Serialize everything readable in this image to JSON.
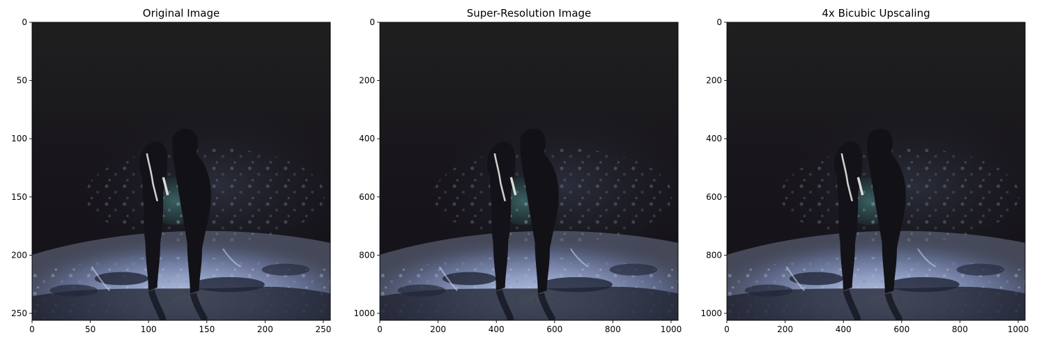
{
  "figure": {
    "panels": [
      {
        "title": "Original Image",
        "xticks": [
          0,
          50,
          100,
          150,
          200,
          250
        ],
        "yticks": [
          0,
          50,
          100,
          150,
          200,
          250
        ],
        "extent": 256
      },
      {
        "title": "Super-Resolution Image",
        "xticks": [
          0,
          200,
          400,
          600,
          800,
          1000
        ],
        "yticks": [
          0,
          200,
          400,
          600,
          800,
          1000
        ],
        "extent": 1024
      },
      {
        "title": "4x Bicubic Upscaling",
        "xticks": [
          0,
          200,
          400,
          600,
          800,
          1000
        ],
        "yticks": [
          0,
          200,
          400,
          600,
          800,
          1000
        ],
        "extent": 1024
      }
    ]
  },
  "chart_data": [
    {
      "type": "image",
      "title": "Original Image",
      "xlim": [
        0,
        256
      ],
      "ylim": [
        256,
        0
      ],
      "xticks": [
        0,
        50,
        100,
        150,
        200,
        250
      ],
      "yticks": [
        0,
        50,
        100,
        150,
        200,
        250
      ],
      "grid": false,
      "content": "night scene photograph: two silhouetted figures on snowy ground"
    },
    {
      "type": "image",
      "title": "Super-Resolution Image",
      "xlim": [
        0,
        1024
      ],
      "ylim": [
        1024,
        0
      ],
      "xticks": [
        0,
        200,
        400,
        600,
        800,
        1000
      ],
      "yticks": [
        0,
        200,
        400,
        600,
        800,
        1000
      ],
      "grid": false,
      "content": "night scene photograph: two silhouetted figures on snowy ground"
    },
    {
      "type": "image",
      "title": "4x Bicubic Upscaling",
      "xlim": [
        0,
        1024
      ],
      "ylim": [
        1024,
        0
      ],
      "xticks": [
        0,
        200,
        400,
        600,
        800,
        1000
      ],
      "yticks": [
        0,
        200,
        400,
        600,
        800,
        1000
      ],
      "grid": false,
      "content": "night scene photograph: two silhouetted figures on snowy ground"
    }
  ],
  "colors": {
    "sky_top": "#1e1e1f",
    "sky_mid": "#16131a",
    "snow_light": "#c8d2ea",
    "snow_mid": "#6f7fa8",
    "snow_dark": "#2a3148",
    "figure": "#151419",
    "foliage": "#2f5555",
    "rim_light": "#e6e2dc"
  }
}
